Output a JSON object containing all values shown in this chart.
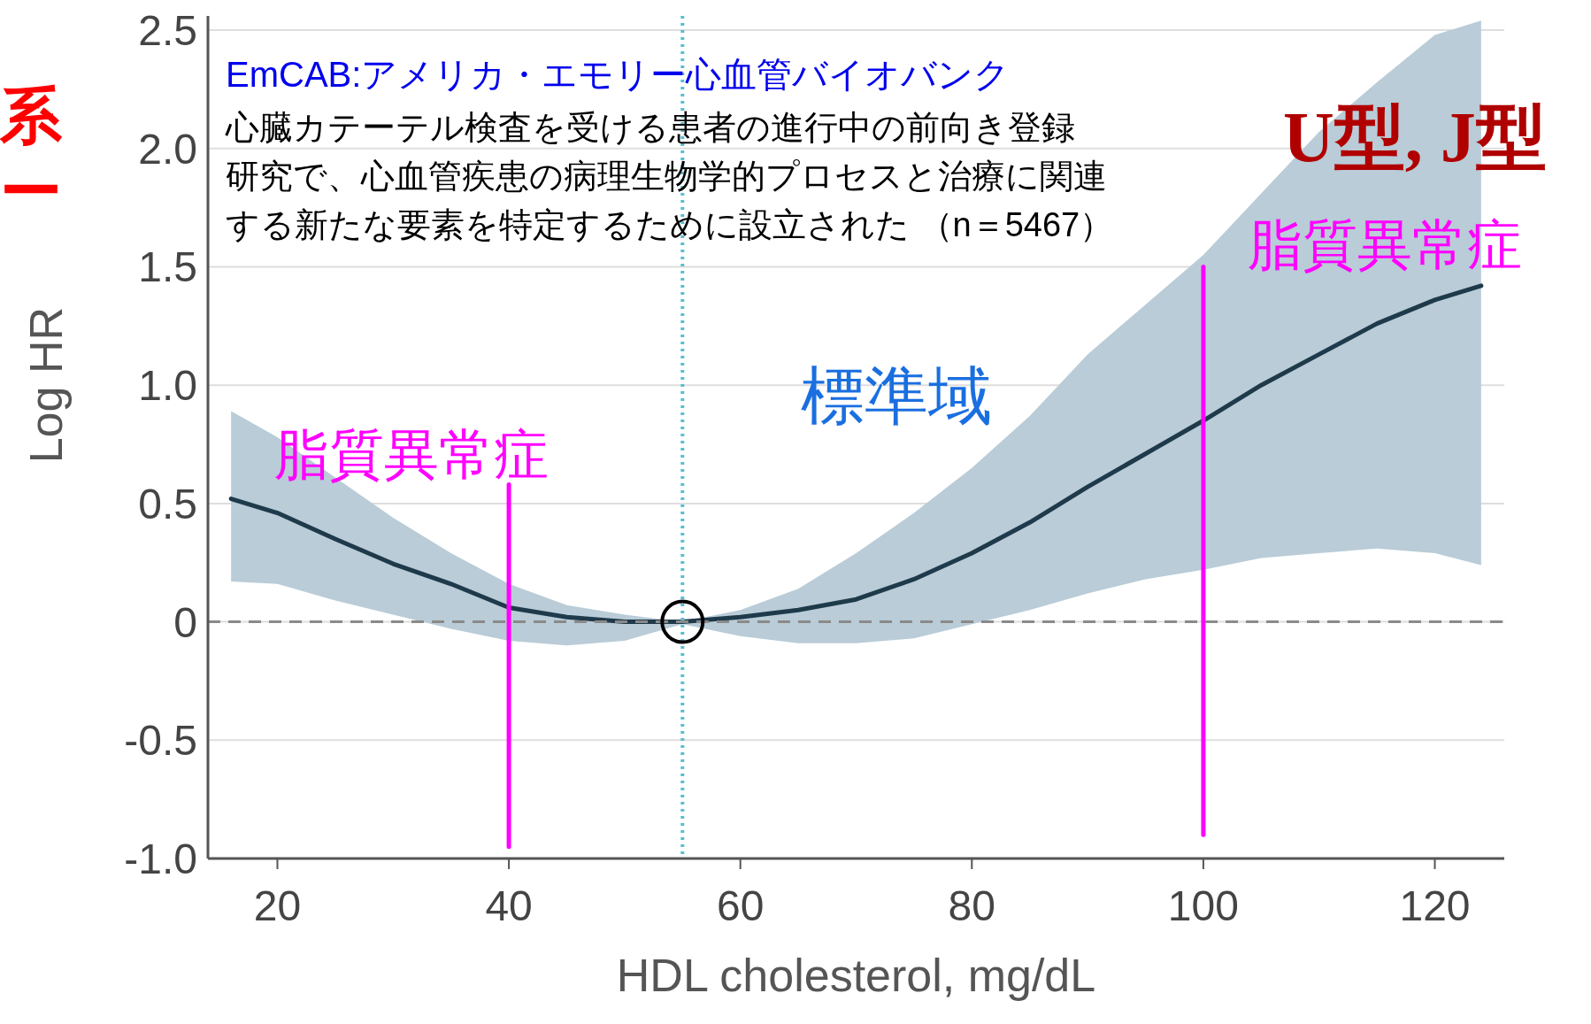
{
  "chart_data": {
    "type": "line",
    "xlabel": "HDL cholesterol, mg/dL",
    "ylabel": "Log HR",
    "xlim": [
      14,
      126
    ],
    "xticks": [
      20,
      40,
      60,
      80,
      100,
      120
    ],
    "ylim": [
      -1.0,
      2.56
    ],
    "yticks": [
      {
        "value": -1.0,
        "label": "-1.0"
      },
      {
        "value": -0.5,
        "label": "-0.5"
      },
      0,
      {
        "value": 0.5,
        "label": "0.5"
      },
      {
        "value": 1.0,
        "label": "1.0"
      },
      {
        "value": 1.5,
        "label": "1.5"
      },
      {
        "value": 2.0,
        "label": "2.0"
      },
      {
        "value": 2.5,
        "label": "2.5"
      }
    ],
    "grid": "y",
    "series": [
      {
        "color": "#1f3a4a",
        "x": [
          16,
          20,
          25,
          30,
          35,
          40,
          45,
          50,
          55,
          60,
          65,
          70,
          75,
          80,
          85,
          90,
          95,
          100,
          105,
          110,
          115,
          120,
          124
        ],
        "values": [
          0.52,
          0.46,
          0.35,
          0.245,
          0.16,
          0.06,
          0.02,
          0.0,
          0.0,
          0.02,
          0.05,
          0.095,
          0.18,
          0.29,
          0.42,
          0.57,
          0.71,
          0.85,
          1.0,
          1.13,
          1.26,
          1.36,
          1.42
        ],
        "lower": [
          0.17,
          0.16,
          0.09,
          0.03,
          -0.03,
          -0.08,
          -0.1,
          -0.08,
          -0.01,
          -0.06,
          -0.09,
          -0.09,
          -0.07,
          -0.01,
          0.05,
          0.12,
          0.18,
          0.22,
          0.27,
          0.29,
          0.31,
          0.29,
          0.24
        ],
        "upper": [
          0.89,
          0.78,
          0.61,
          0.44,
          0.29,
          0.16,
          0.07,
          0.03,
          0.0,
          0.05,
          0.14,
          0.29,
          0.46,
          0.65,
          0.87,
          1.13,
          1.34,
          1.55,
          1.81,
          2.07,
          2.28,
          2.48,
          2.54
        ]
      },
      {
        "color": "#ff00ff",
        "x": [
          40,
          40
        ],
        "values": [
          -0.95,
          0.58
        ]
      },
      {
        "color": "#ff00ff",
        "x": [
          100,
          100
        ],
        "values": [
          -0.9,
          1.5
        ]
      },
      {
        "type": "scatter",
        "color": "#000000",
        "marker": "circle",
        "x": [
          55
        ],
        "values": [
          0
        ]
      }
    ],
    "ref_lines": [
      {
        "axis": "y",
        "value": 0,
        "color": "#8a8a8a",
        "line_style": "dashed"
      },
      {
        "axis": "x",
        "value": 55,
        "color": "#5bbcd0",
        "line_style": "dotted"
      }
    ],
    "annotations": [
      "EmCAB:アメリカ・エモリー心血管バイオバンク",
      "心臓カテーテル検査を受ける患者の進行中の前向き登録",
      "研究で、心血管疾患の病理生物学的プロセスと治療に関連",
      "する新たな要素を特定するために設立された （n＝5467）",
      "脂質異常症",
      "標準域",
      "脂質異常症",
      "U型, J型",
      "系",
      "ー"
    ]
  }
}
